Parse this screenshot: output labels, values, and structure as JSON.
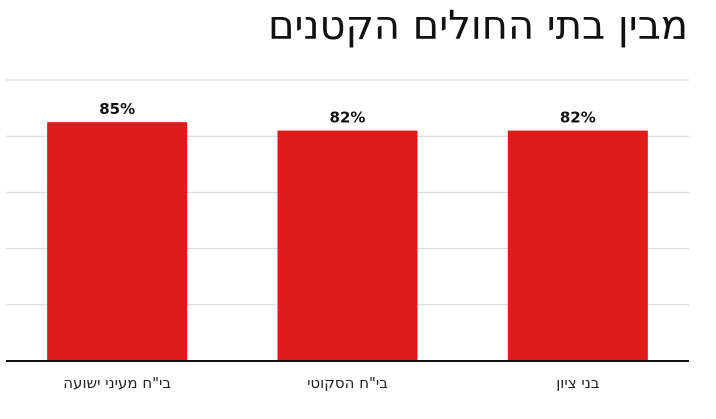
{
  "chart_data": {
    "type": "bar",
    "title": "מבין בתי החולים הקטנים",
    "categories": [
      "בי\"ח מעיני ישועה",
      "בי\"ח הסקוטי",
      "בני ציון"
    ],
    "values": [
      85,
      82,
      82
    ],
    "value_labels": [
      "85%",
      "82%",
      "82%"
    ],
    "xlabel": "",
    "ylabel": "",
    "ylim": [
      0,
      100
    ],
    "grid": true,
    "bar_color": "#dd1c1c"
  }
}
